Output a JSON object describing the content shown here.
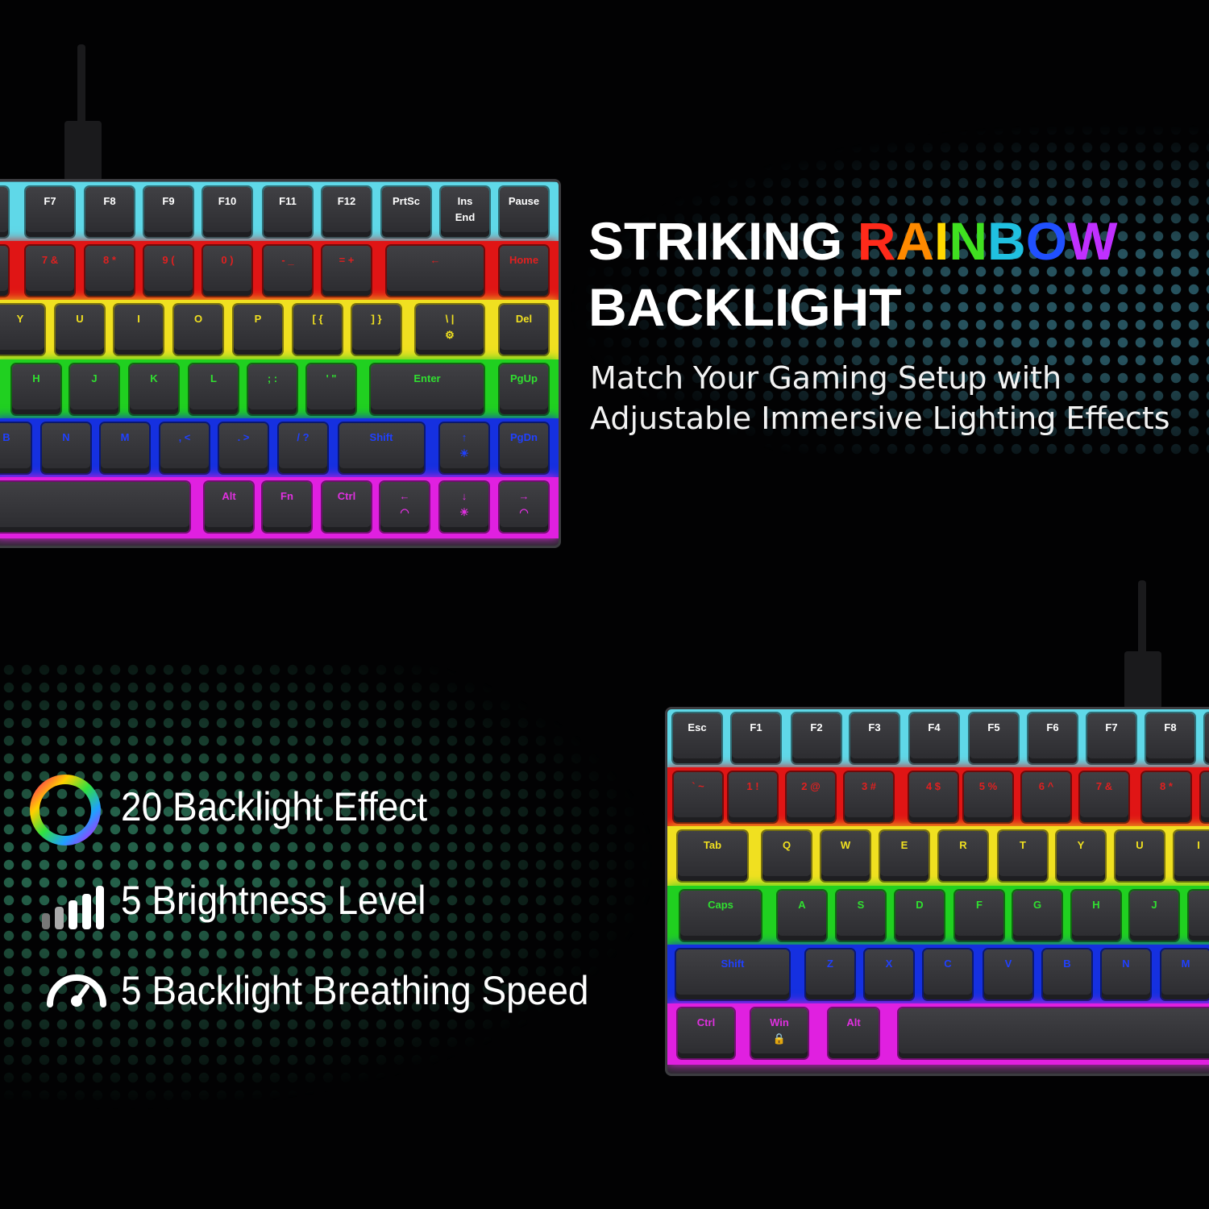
{
  "headline": {
    "line1_prefix": "STRIKING ",
    "line1_rainbow": "RAINBOW",
    "line2": "BACKLIGHT",
    "rainbow_letter_colors": [
      "#ff2a1a",
      "#ff8a00",
      "#ffd800",
      "#40e020",
      "#20c0e0",
      "#2050ff",
      "#c030ff"
    ]
  },
  "subtitle": "Match Your Gaming Setup with Adjustable Immersive Lighting Effects",
  "features": [
    {
      "icon": "color-ring-icon",
      "text": "20 Backlight Effect"
    },
    {
      "icon": "signal-bars-icon",
      "text": "5 Brightness Level"
    },
    {
      "icon": "speedometer-icon",
      "text": "5 Backlight Breathing Speed"
    }
  ],
  "row_colors": [
    "#5fd8e8",
    "#e01515",
    "#f0e020",
    "#20d020",
    "#1530e0",
    "#e020e0"
  ],
  "row_text_colors": [
    "#ffffff",
    "#e02020",
    "#f0e020",
    "#30e030",
    "#2040ff",
    "#e030e0"
  ],
  "keyboard_top": {
    "rows": [
      [
        "",
        "F7",
        "F8",
        "F9",
        "F10",
        "F11",
        "F12",
        "PrtSc",
        "Ins\nEnd",
        "Pause"
      ],
      [
        "",
        "7 &",
        "8 *",
        "9 (",
        "0 )",
        "- _",
        "= +",
        "←",
        "Home"
      ],
      [
        "Y",
        "U",
        "I",
        "O",
        "P",
        "[ {",
        "] }",
        "\\ |\n⚙",
        "Del"
      ],
      [
        "H",
        "J",
        "K",
        "L",
        "; :",
        "' \"",
        "Enter",
        "PgUp"
      ],
      [
        "B",
        "N",
        "M",
        ", <",
        ". >",
        "/ ?",
        "Shift",
        "↑\n☀",
        "PgDn"
      ],
      [
        "",
        "Alt",
        "Fn",
        "Ctrl",
        "←\n◠",
        "↓\n☀",
        "→\n◠"
      ]
    ]
  },
  "keyboard_bottom": {
    "rows": [
      [
        "Esc",
        "F1",
        "F2",
        "F3",
        "F4",
        "F5",
        "F6",
        "F7",
        "F8",
        ""
      ],
      [
        "` ~",
        "1 !",
        "2 @",
        "3 #",
        "4 $",
        "5 %",
        "6 ^",
        "7 &",
        "8 *",
        ""
      ],
      [
        "Tab",
        "Q",
        "W",
        "E",
        "R",
        "T",
        "Y",
        "U",
        "I"
      ],
      [
        "Caps",
        "A",
        "S",
        "D",
        "F",
        "G",
        "H",
        "J",
        ""
      ],
      [
        "Shift",
        "Z",
        "X",
        "C",
        "V",
        "B",
        "N",
        "M"
      ],
      [
        "Ctrl",
        "Win\n🔒",
        "Alt",
        ""
      ]
    ]
  }
}
